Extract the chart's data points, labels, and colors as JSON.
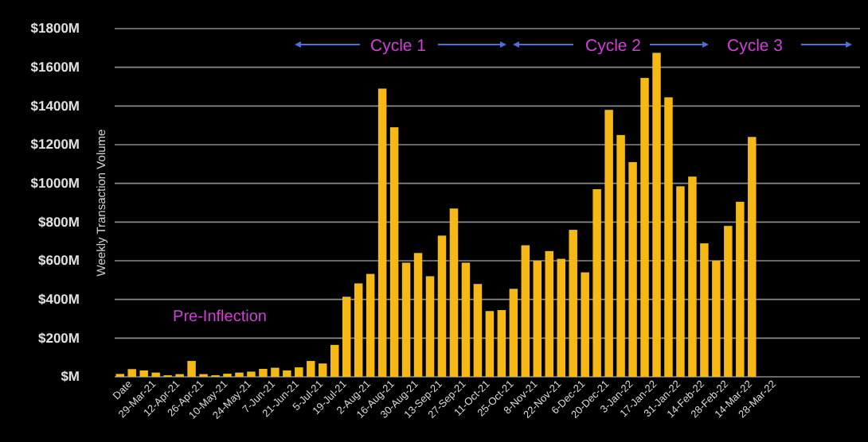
{
  "chart_data": {
    "type": "bar",
    "ylabel": "Weekly Transaction Volume",
    "categories": [
      "Date",
      null,
      "29-Mar-21",
      null,
      "12-Apr-21",
      null,
      "26-Apr-21",
      null,
      "10-May-21",
      null,
      "24-May-21",
      null,
      "7-Jun-21",
      null,
      "21-Jun-21",
      null,
      "5-Jul-21",
      null,
      "19-Jul-21",
      null,
      "2-Aug-21",
      null,
      "16-Aug-21",
      null,
      "30-Aug-21",
      null,
      "13-Sep-21",
      null,
      "27-Sep-21",
      null,
      "11-Oct-21",
      null,
      "25-Oct-21",
      null,
      "8-Nov-21",
      null,
      "22-Nov-21",
      null,
      "6-Dec-21",
      null,
      "20-Dec-21",
      null,
      "3-Jan-22",
      null,
      "17-Jan-22",
      null,
      "31-Jan-22",
      null,
      "14-Feb-22",
      null,
      "28-Feb-22",
      null,
      "14-Mar-22",
      null,
      "28-Mar-22"
    ],
    "values": [
      15,
      40,
      33,
      22,
      8,
      14,
      82,
      14,
      8,
      16,
      22,
      27,
      41,
      47,
      33,
      49,
      82,
      69,
      165,
      414,
      483,
      532,
      1490,
      1290,
      590,
      640,
      520,
      730,
      870,
      590,
      480,
      340,
      345,
      455,
      680,
      600,
      650,
      610,
      760,
      540,
      970,
      1380,
      1250,
      1110,
      1545,
      1675,
      1445,
      985,
      1035,
      690,
      600,
      780,
      905,
      1240,
      null
    ],
    "color": "#f5b814",
    "ylim": [
      0,
      1800
    ],
    "yticks": [
      {
        "value": 0,
        "label": "$M"
      },
      {
        "value": 200,
        "label": "$200M"
      },
      {
        "value": 400,
        "label": "$400M"
      },
      {
        "value": 600,
        "label": "$600M"
      },
      {
        "value": 800,
        "label": "$800M"
      },
      {
        "value": 1000,
        "label": "$1000M"
      },
      {
        "value": 1200,
        "label": "$1200M"
      },
      {
        "value": 1400,
        "label": "$1400M"
      },
      {
        "value": 1600,
        "label": "$1600M"
      },
      {
        "value": 1800,
        "label": "$1800M"
      }
    ],
    "grid": "y",
    "annotations": [
      "Pre-Inflection",
      "Cycle 1",
      "Cycle 2",
      "Cycle 3"
    ]
  }
}
